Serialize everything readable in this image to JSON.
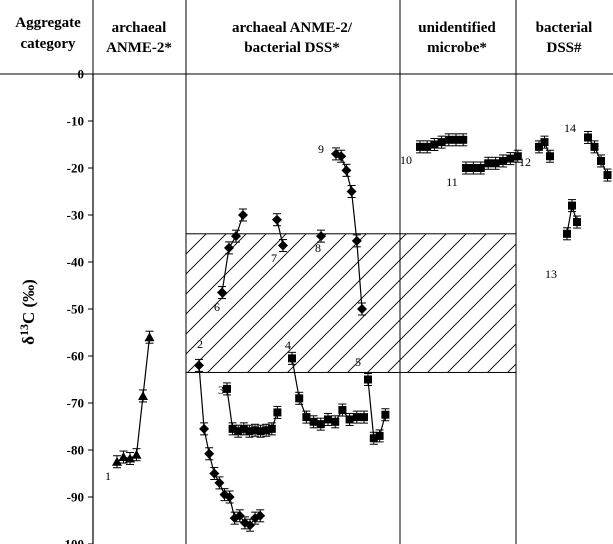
{
  "header": {
    "row_title_line1": "Aggregate",
    "row_title_line2": "category",
    "columns": [
      {
        "line1": "archaeal",
        "line2": "ANME-2*"
      },
      {
        "line1": "archaeal ANME-2/",
        "line2": "bacterial DSS*"
      },
      {
        "line1": "unidentified",
        "line2": "microbe*"
      },
      {
        "line1": "bacterial",
        "line2": "DSS#"
      }
    ]
  },
  "chart_data": {
    "type": "scatter",
    "title": "",
    "ylabel": "δ13C (‰)",
    "ylim": [
      -100,
      0
    ],
    "yticks": [
      0,
      -10,
      -20,
      -30,
      -40,
      -50,
      -60,
      -70,
      -80,
      -90,
      -100
    ],
    "grid": false,
    "shaded_band": {
      "y_from": -63.5,
      "y_to": -34,
      "columns": [
        "archaeal ANME-2/bacterial DSS*",
        "unidentified microbe*"
      ]
    },
    "series": [
      {
        "label": "1",
        "category": "archaeal ANME-2*",
        "marker": "triangle",
        "values": [
          -82.5,
          -81.5,
          -81.8,
          -81,
          -68.5,
          -56
        ]
      },
      {
        "label": "2",
        "category": "archaeal ANME-2/bacterial DSS*",
        "marker": "diamond",
        "values": [
          -62,
          -75.5,
          -80.8,
          -85,
          -87,
          -89.5,
          -90,
          -94.5,
          -94,
          -95.5,
          -96,
          -94.5,
          -94
        ]
      },
      {
        "label": "3",
        "category": "archaeal ANME-2/bacterial DSS*",
        "marker": "square",
        "values": [
          -67,
          -75.5,
          -76,
          -75.5,
          -76,
          -75.8,
          -76,
          -75.8,
          -75.5,
          -72
        ]
      },
      {
        "label": "4",
        "category": "archaeal ANME-2/bacterial DSS*",
        "marker": "square",
        "values": [
          -60.5,
          -69,
          -73,
          -74,
          -74.5,
          -73.5,
          -74,
          -71.5,
          -73.5,
          -73,
          -73
        ]
      },
      {
        "label": "5",
        "category": "archaeal ANME-2/bacterial DSS*",
        "marker": "square",
        "values": [
          -65,
          -77.5,
          -77,
          -72.5
        ]
      },
      {
        "label": "6",
        "category": "archaeal ANME-2/bacterial DSS*",
        "marker": "diamond",
        "values": [
          -46.5,
          -37,
          -34.5,
          -30
        ]
      },
      {
        "label": "7",
        "category": "archaeal ANME-2/bacterial DSS*",
        "marker": "diamond",
        "values": [
          -31,
          -36.5
        ]
      },
      {
        "label": "8",
        "category": "archaeal ANME-2/bacterial DSS*",
        "marker": "diamond",
        "values": [
          -34.5
        ]
      },
      {
        "label": "9",
        "category": "archaeal ANME-2/bacterial DSS*",
        "marker": "diamond",
        "values": [
          -17,
          -17.5,
          -20.5,
          -25,
          -35.5,
          -50
        ]
      },
      {
        "label": "10",
        "category": "unidentified microbe*",
        "marker": "square",
        "values": [
          -15.5,
          -15.5,
          -15,
          -14.5,
          -14,
          -14,
          -14
        ]
      },
      {
        "label": "11",
        "category": "unidentified microbe*",
        "marker": "square",
        "values": [
          -20,
          -20,
          -20,
          -19,
          -19,
          -18.5,
          -18,
          -17.5
        ]
      },
      {
        "label": "12",
        "category": "bacterial DSS#",
        "marker": "square",
        "values": [
          -15.5,
          -14.5,
          -17.5
        ]
      },
      {
        "label": "13",
        "category": "bacterial DSS#",
        "marker": "square",
        "values": [
          -34,
          -28,
          -31.5
        ]
      },
      {
        "label": "14",
        "category": "bacterial DSS#",
        "marker": "square",
        "values": [
          -13.5,
          -15.5,
          -18.5,
          -21.5
        ]
      }
    ]
  }
}
